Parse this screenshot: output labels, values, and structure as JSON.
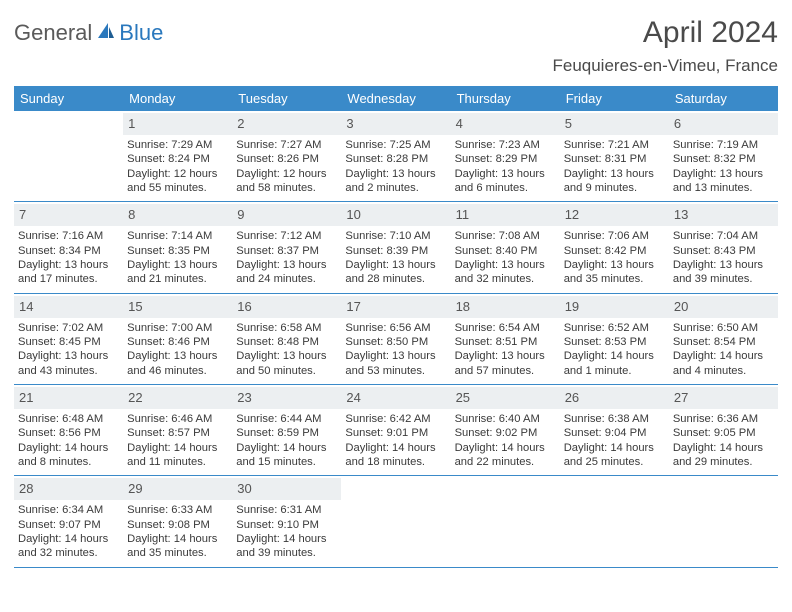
{
  "logo": {
    "part1": "General",
    "part2": "Blue"
  },
  "title": "April 2024",
  "subtitle": "Feuquieres-en-Vimeu, France",
  "colors": {
    "header_bg": "#3a8ac9",
    "day_strip_bg": "#eceff1",
    "text": "#3a3a3a",
    "logo_blue": "#2a78bd"
  },
  "weekdays": [
    "Sunday",
    "Monday",
    "Tuesday",
    "Wednesday",
    "Thursday",
    "Friday",
    "Saturday"
  ],
  "weeks": [
    [
      {
        "empty": true
      },
      {
        "num": "1",
        "sunrise": "Sunrise: 7:29 AM",
        "sunset": "Sunset: 8:24 PM",
        "daylight": "Daylight: 12 hours and 55 minutes."
      },
      {
        "num": "2",
        "sunrise": "Sunrise: 7:27 AM",
        "sunset": "Sunset: 8:26 PM",
        "daylight": "Daylight: 12 hours and 58 minutes."
      },
      {
        "num": "3",
        "sunrise": "Sunrise: 7:25 AM",
        "sunset": "Sunset: 8:28 PM",
        "daylight": "Daylight: 13 hours and 2 minutes."
      },
      {
        "num": "4",
        "sunrise": "Sunrise: 7:23 AM",
        "sunset": "Sunset: 8:29 PM",
        "daylight": "Daylight: 13 hours and 6 minutes."
      },
      {
        "num": "5",
        "sunrise": "Sunrise: 7:21 AM",
        "sunset": "Sunset: 8:31 PM",
        "daylight": "Daylight: 13 hours and 9 minutes."
      },
      {
        "num": "6",
        "sunrise": "Sunrise: 7:19 AM",
        "sunset": "Sunset: 8:32 PM",
        "daylight": "Daylight: 13 hours and 13 minutes."
      }
    ],
    [
      {
        "num": "7",
        "sunrise": "Sunrise: 7:16 AM",
        "sunset": "Sunset: 8:34 PM",
        "daylight": "Daylight: 13 hours and 17 minutes."
      },
      {
        "num": "8",
        "sunrise": "Sunrise: 7:14 AM",
        "sunset": "Sunset: 8:35 PM",
        "daylight": "Daylight: 13 hours and 21 minutes."
      },
      {
        "num": "9",
        "sunrise": "Sunrise: 7:12 AM",
        "sunset": "Sunset: 8:37 PM",
        "daylight": "Daylight: 13 hours and 24 minutes."
      },
      {
        "num": "10",
        "sunrise": "Sunrise: 7:10 AM",
        "sunset": "Sunset: 8:39 PM",
        "daylight": "Daylight: 13 hours and 28 minutes."
      },
      {
        "num": "11",
        "sunrise": "Sunrise: 7:08 AM",
        "sunset": "Sunset: 8:40 PM",
        "daylight": "Daylight: 13 hours and 32 minutes."
      },
      {
        "num": "12",
        "sunrise": "Sunrise: 7:06 AM",
        "sunset": "Sunset: 8:42 PM",
        "daylight": "Daylight: 13 hours and 35 minutes."
      },
      {
        "num": "13",
        "sunrise": "Sunrise: 7:04 AM",
        "sunset": "Sunset: 8:43 PM",
        "daylight": "Daylight: 13 hours and 39 minutes."
      }
    ],
    [
      {
        "num": "14",
        "sunrise": "Sunrise: 7:02 AM",
        "sunset": "Sunset: 8:45 PM",
        "daylight": "Daylight: 13 hours and 43 minutes."
      },
      {
        "num": "15",
        "sunrise": "Sunrise: 7:00 AM",
        "sunset": "Sunset: 8:46 PM",
        "daylight": "Daylight: 13 hours and 46 minutes."
      },
      {
        "num": "16",
        "sunrise": "Sunrise: 6:58 AM",
        "sunset": "Sunset: 8:48 PM",
        "daylight": "Daylight: 13 hours and 50 minutes."
      },
      {
        "num": "17",
        "sunrise": "Sunrise: 6:56 AM",
        "sunset": "Sunset: 8:50 PM",
        "daylight": "Daylight: 13 hours and 53 minutes."
      },
      {
        "num": "18",
        "sunrise": "Sunrise: 6:54 AM",
        "sunset": "Sunset: 8:51 PM",
        "daylight": "Daylight: 13 hours and 57 minutes."
      },
      {
        "num": "19",
        "sunrise": "Sunrise: 6:52 AM",
        "sunset": "Sunset: 8:53 PM",
        "daylight": "Daylight: 14 hours and 1 minute."
      },
      {
        "num": "20",
        "sunrise": "Sunrise: 6:50 AM",
        "sunset": "Sunset: 8:54 PM",
        "daylight": "Daylight: 14 hours and 4 minutes."
      }
    ],
    [
      {
        "num": "21",
        "sunrise": "Sunrise: 6:48 AM",
        "sunset": "Sunset: 8:56 PM",
        "daylight": "Daylight: 14 hours and 8 minutes."
      },
      {
        "num": "22",
        "sunrise": "Sunrise: 6:46 AM",
        "sunset": "Sunset: 8:57 PM",
        "daylight": "Daylight: 14 hours and 11 minutes."
      },
      {
        "num": "23",
        "sunrise": "Sunrise: 6:44 AM",
        "sunset": "Sunset: 8:59 PM",
        "daylight": "Daylight: 14 hours and 15 minutes."
      },
      {
        "num": "24",
        "sunrise": "Sunrise: 6:42 AM",
        "sunset": "Sunset: 9:01 PM",
        "daylight": "Daylight: 14 hours and 18 minutes."
      },
      {
        "num": "25",
        "sunrise": "Sunrise: 6:40 AM",
        "sunset": "Sunset: 9:02 PM",
        "daylight": "Daylight: 14 hours and 22 minutes."
      },
      {
        "num": "26",
        "sunrise": "Sunrise: 6:38 AM",
        "sunset": "Sunset: 9:04 PM",
        "daylight": "Daylight: 14 hours and 25 minutes."
      },
      {
        "num": "27",
        "sunrise": "Sunrise: 6:36 AM",
        "sunset": "Sunset: 9:05 PM",
        "daylight": "Daylight: 14 hours and 29 minutes."
      }
    ],
    [
      {
        "num": "28",
        "sunrise": "Sunrise: 6:34 AM",
        "sunset": "Sunset: 9:07 PM",
        "daylight": "Daylight: 14 hours and 32 minutes."
      },
      {
        "num": "29",
        "sunrise": "Sunrise: 6:33 AM",
        "sunset": "Sunset: 9:08 PM",
        "daylight": "Daylight: 14 hours and 35 minutes."
      },
      {
        "num": "30",
        "sunrise": "Sunrise: 6:31 AM",
        "sunset": "Sunset: 9:10 PM",
        "daylight": "Daylight: 14 hours and 39 minutes."
      },
      {
        "empty": true
      },
      {
        "empty": true
      },
      {
        "empty": true
      },
      {
        "empty": true
      }
    ]
  ]
}
